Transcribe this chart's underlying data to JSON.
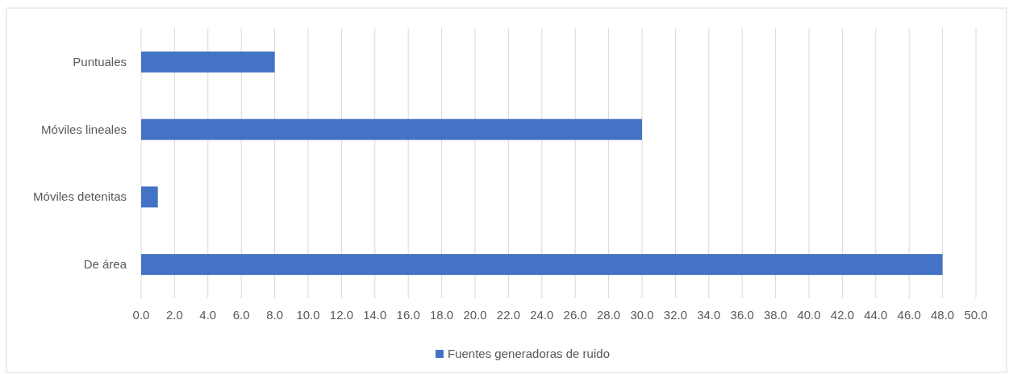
{
  "chart_data": {
    "type": "bar",
    "orientation": "horizontal",
    "categories": [
      "Puntuales",
      "Móviles lineales",
      "Móviles detenitas",
      "De área"
    ],
    "series": [
      {
        "name": "Fuentes generadoras de ruido",
        "color": "#4472c4",
        "values": [
          8,
          30,
          1,
          48
        ]
      }
    ],
    "xlim": [
      0,
      50
    ],
    "xticks": [
      {
        "value": 0,
        "label": "0.0"
      },
      {
        "value": 2,
        "label": "2.0"
      },
      {
        "value": 4,
        "label": "4.0"
      },
      {
        "value": 6,
        "label": "6.0"
      },
      {
        "value": 8,
        "label": "8.0"
      },
      {
        "value": 10,
        "label": "10.0"
      },
      {
        "value": 12,
        "label": "12.0"
      },
      {
        "value": 14,
        "label": "14.0"
      },
      {
        "value": 16,
        "label": "16.0"
      },
      {
        "value": 18,
        "label": "18.0"
      },
      {
        "value": 20,
        "label": "20.0"
      },
      {
        "value": 22,
        "label": "22.0"
      },
      {
        "value": 24,
        "label": "24.0"
      },
      {
        "value": 26,
        "label": "26.0"
      },
      {
        "value": 28,
        "label": "28.0"
      },
      {
        "value": 30,
        "label": "30.0"
      },
      {
        "value": 32,
        "label": "32.0"
      },
      {
        "value": 34,
        "label": "34.0"
      },
      {
        "value": 36,
        "label": "36.0"
      },
      {
        "value": 38,
        "label": "38.0"
      },
      {
        "value": 40,
        "label": "40.0"
      },
      {
        "value": 42,
        "label": "42.0"
      },
      {
        "value": 44,
        "label": "44.0"
      },
      {
        "value": 46,
        "label": "46.0"
      },
      {
        "value": 48,
        "label": "48.0"
      },
      {
        "value": 50,
        "label": "50.0"
      }
    ],
    "grid": "x",
    "legend": "bottom"
  }
}
